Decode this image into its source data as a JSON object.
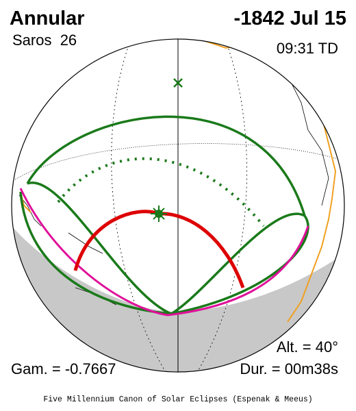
{
  "header": {
    "type": "Annular",
    "date": "-1842 Jul 15",
    "saros": "Saros  26",
    "time": "09:31 TD"
  },
  "parameters": {
    "altitude": "Alt. = 40°",
    "gamma": "Gam. = -0.7667",
    "duration": "Dur. = 00m38s"
  },
  "footer": "Five Millennium Canon of Solar Eclipses (Espenak & Meeus)"
}
